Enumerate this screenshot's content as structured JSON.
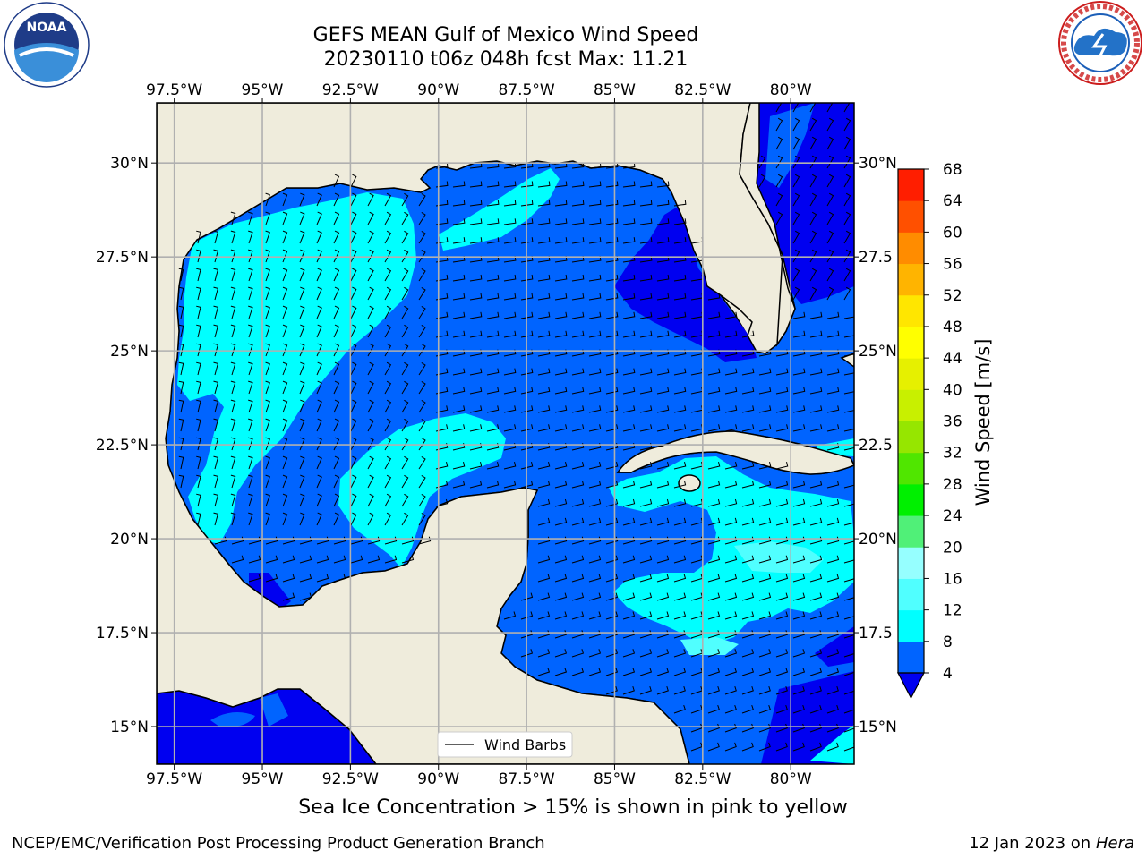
{
  "title_line1": "GEFS MEAN Gulf of Mexico Wind Speed",
  "title_line2": "20230110 t06z 048h fcst   Max: 11.21",
  "note": "Sea Ice Concentration > 15% is shown in pink to yellow",
  "footer_left": "NCEP/EMC/Verification Post Processing Product Generation Branch",
  "footer_date": "12 Jan 2023 on ",
  "footer_host": "Hera",
  "logos": {
    "left": "NOAA",
    "left_ring": "NATIONAL OCEANIC AND ATMOSPHERIC ADMINISTRATION · U.S. DEPARTMENT OF COMMERCE",
    "right_ring": "NATIONAL WEATHER SERVICE"
  },
  "legend_label": "Wind Barbs",
  "chart_data": {
    "type": "map",
    "lon_ticks": [
      "97.5°W",
      "95°W",
      "92.5°W",
      "90°W",
      "87.5°W",
      "85°W",
      "82.5°W",
      "80°W"
    ],
    "lon_values": [
      -97.5,
      -95,
      -92.5,
      -90,
      -87.5,
      -85,
      -82.5,
      -80
    ],
    "lat_ticks_left": [
      "15°N",
      "17.5°N",
      "20°N",
      "22.5°N",
      "25°N",
      "27.5°N",
      "30°N"
    ],
    "lat_ticks_right": [
      "15°N",
      "17.5",
      "20°N",
      "22.5",
      "25°N",
      "27.5",
      "30°N"
    ],
    "lat_values": [
      15,
      17.5,
      20,
      22.5,
      25,
      27.5,
      30
    ],
    "extent": {
      "lon": [
        -98,
        -78.2
      ],
      "lat": [
        14,
        31.6
      ]
    },
    "colorbar": {
      "label": "Wind Speed [m/s]",
      "ticks": [
        "4",
        "8",
        "12",
        "16",
        "20",
        "24",
        "28",
        "32",
        "36",
        "40",
        "44",
        "48",
        "52",
        "56",
        "60",
        "64",
        "68"
      ],
      "levels": [
        4,
        8,
        12,
        16,
        20,
        24,
        28,
        32,
        36,
        40,
        44,
        48,
        52,
        56,
        60,
        64,
        68
      ],
      "colors": [
        "#0064ff",
        "#00ffff",
        "#50ffff",
        "#96ffff",
        "#50f078",
        "#00f000",
        "#50e600",
        "#96e600",
        "#c8f000",
        "#e6f000",
        "#ffff00",
        "#ffe600",
        "#ffb400",
        "#ff8c00",
        "#ff5000",
        "#ff1e00"
      ],
      "under_color": "#0000f0"
    },
    "colors": {
      "land": "#efecdc",
      "grid": "#b0b0b0",
      "wind_low": "#0000f0",
      "wind_4_8": "#0064ff",
      "wind_8_12": "#00ffff"
    }
  }
}
